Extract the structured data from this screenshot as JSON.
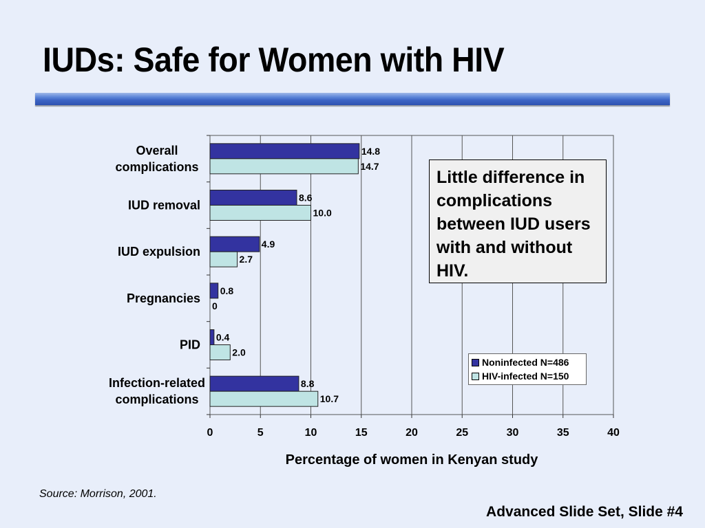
{
  "slide": {
    "title": "IUDs: Safe for Women with HIV",
    "source": "Source: Morrison, 2001.",
    "footer": "Advanced Slide Set, Slide #4"
  },
  "callout": {
    "text": "Little difference in complications between IUD users with and without HIV."
  },
  "chart_data": {
    "type": "bar",
    "orientation": "horizontal",
    "categories": [
      [
        "Overall",
        "complications"
      ],
      [
        "IUD removal"
      ],
      [
        "IUD expulsion"
      ],
      [
        "Pregnancies"
      ],
      [
        "PID"
      ],
      [
        "Infection-related",
        "complications"
      ]
    ],
    "series": [
      {
        "name": "Noninfected N=486",
        "values": [
          14.8,
          8.6,
          4.9,
          0.8,
          0.4,
          8.8
        ],
        "labels": [
          "14.8",
          "8.6",
          "4.9",
          "0.8",
          "0.4",
          "8.8"
        ],
        "color": "#3333a0"
      },
      {
        "name": "HIV-infected N=150",
        "values": [
          14.7,
          10.0,
          2.7,
          0,
          2.0,
          10.7
        ],
        "labels": [
          "14.7",
          "10.0",
          "2.7",
          "0",
          "2.0",
          "10.7"
        ],
        "color": "#bfe4e4"
      }
    ],
    "xlabel": "Percentage of women in Kenyan study",
    "ylabel": "",
    "xlim": [
      0,
      40
    ],
    "xticks": [
      0,
      5,
      10,
      15,
      20,
      25,
      30,
      35,
      40
    ],
    "grid": "vertical",
    "legend_position": "bottom-right"
  }
}
